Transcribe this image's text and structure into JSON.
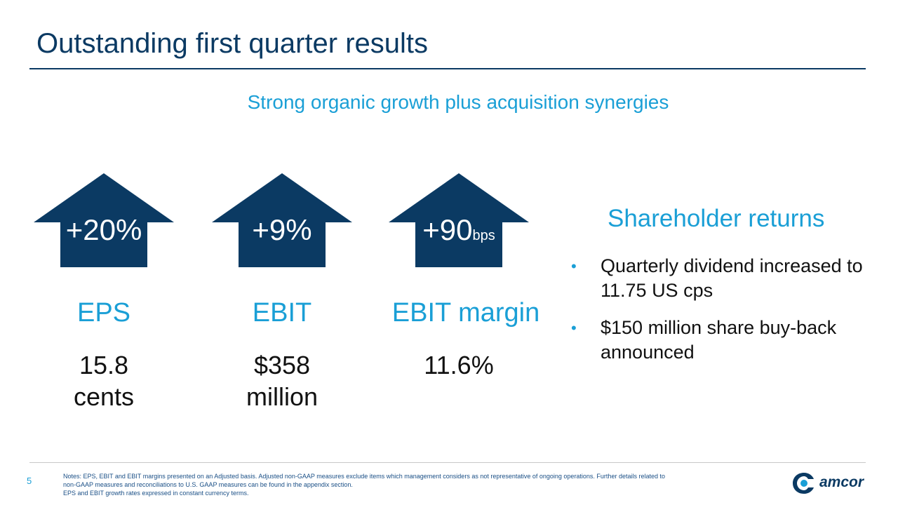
{
  "slide": {
    "title": "Outstanding first quarter results",
    "subtitle": "Strong organic growth plus acquisition synergies",
    "page_number": "5"
  },
  "metrics": [
    {
      "change": "+20%",
      "change_unit": "",
      "label": "EPS",
      "value_line1": "15.8",
      "value_line2": "cents"
    },
    {
      "change": "+9%",
      "change_unit": "",
      "label": "EBIT",
      "value_line1": "$358",
      "value_line2": "million"
    },
    {
      "change": "+90",
      "change_unit": "bps",
      "label": "EBIT margin",
      "value_line1": "11.6%",
      "value_line2": ""
    }
  ],
  "shareholder": {
    "title": "Shareholder returns",
    "bullets": [
      "Quarterly dividend increased to 11.75 US cps",
      "$150 million share buy-back announced"
    ]
  },
  "notes": [
    "Notes: EPS, EBIT and EBIT margins presented on an Adjusted basis.  Adjusted non-GAAP measures exclude items which management considers as not representative of ongoing operations.  Further details related to",
    "non-GAAP measures and reconciliations to U.S. GAAP measures can be found in the appendix section.",
    "EPS and EBIT growth rates expressed in constant currency terms."
  ],
  "brand": {
    "logo_text": "amcor",
    "logo_icon": "amcor-logo-icon",
    "colors": {
      "navy": "#0b3a63",
      "accent": "#1a9fd6"
    }
  }
}
